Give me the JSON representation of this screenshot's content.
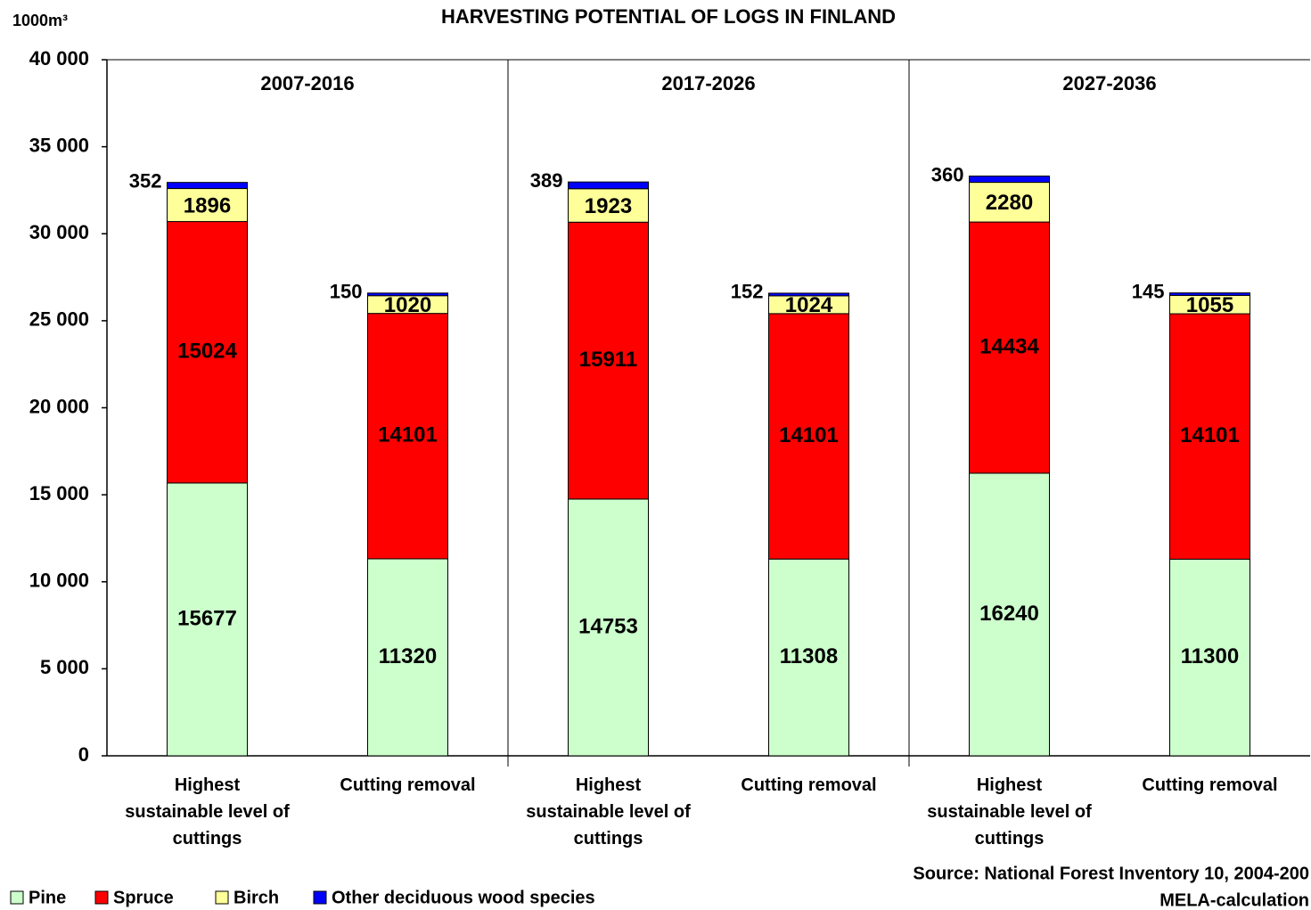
{
  "chart_data": {
    "type": "stacked_bar",
    "title": "HARVESTING POTENTIAL OF LOGS IN FINLAND",
    "y_label": "1000m³",
    "groups": [
      "2007-2016",
      "2017-2026",
      "2027-2036"
    ],
    "categories": [
      "Highest\nsustainable level of\ncuttings",
      "Cutting removal",
      "Highest\nsustainable level of\ncuttings",
      "Cutting removal",
      "Highest\nsustainable level of\ncuttings",
      "Cutting removal"
    ],
    "series": [
      {
        "name": "Pine",
        "color": "#ccffcc",
        "values": [
          15677,
          11320,
          14753,
          11308,
          16240,
          11300
        ]
      },
      {
        "name": "Spruce",
        "color": "#ff0000",
        "values": [
          15024,
          14101,
          15911,
          14101,
          14434,
          14101
        ]
      },
      {
        "name": "Birch",
        "color": "#ffff99",
        "values": [
          1896,
          1020,
          1923,
          1024,
          2280,
          1055
        ]
      },
      {
        "name": "Other deciduous wood species",
        "color": "#0000ff",
        "values": [
          352,
          150,
          389,
          152,
          360,
          145
        ]
      }
    ],
    "ylim": [
      0,
      40000
    ],
    "yticks": [
      0,
      {
        "value": 5000,
        "label": "5 000"
      },
      {
        "value": 10000,
        "label": "10 000"
      },
      {
        "value": 15000,
        "label": "15 000"
      },
      {
        "value": 20000,
        "label": "20 000"
      },
      {
        "value": 25000,
        "label": "25 000"
      },
      {
        "value": 30000,
        "label": "30 000"
      },
      {
        "value": 35000,
        "label": "35 000"
      },
      {
        "value": 40000,
        "label": "40 000"
      }
    ],
    "grid": false,
    "legend": "bottom-left",
    "source": [
      "Source: National Forest Inventory 10, 2004-200",
      "MELA-calculation"
    ]
  }
}
